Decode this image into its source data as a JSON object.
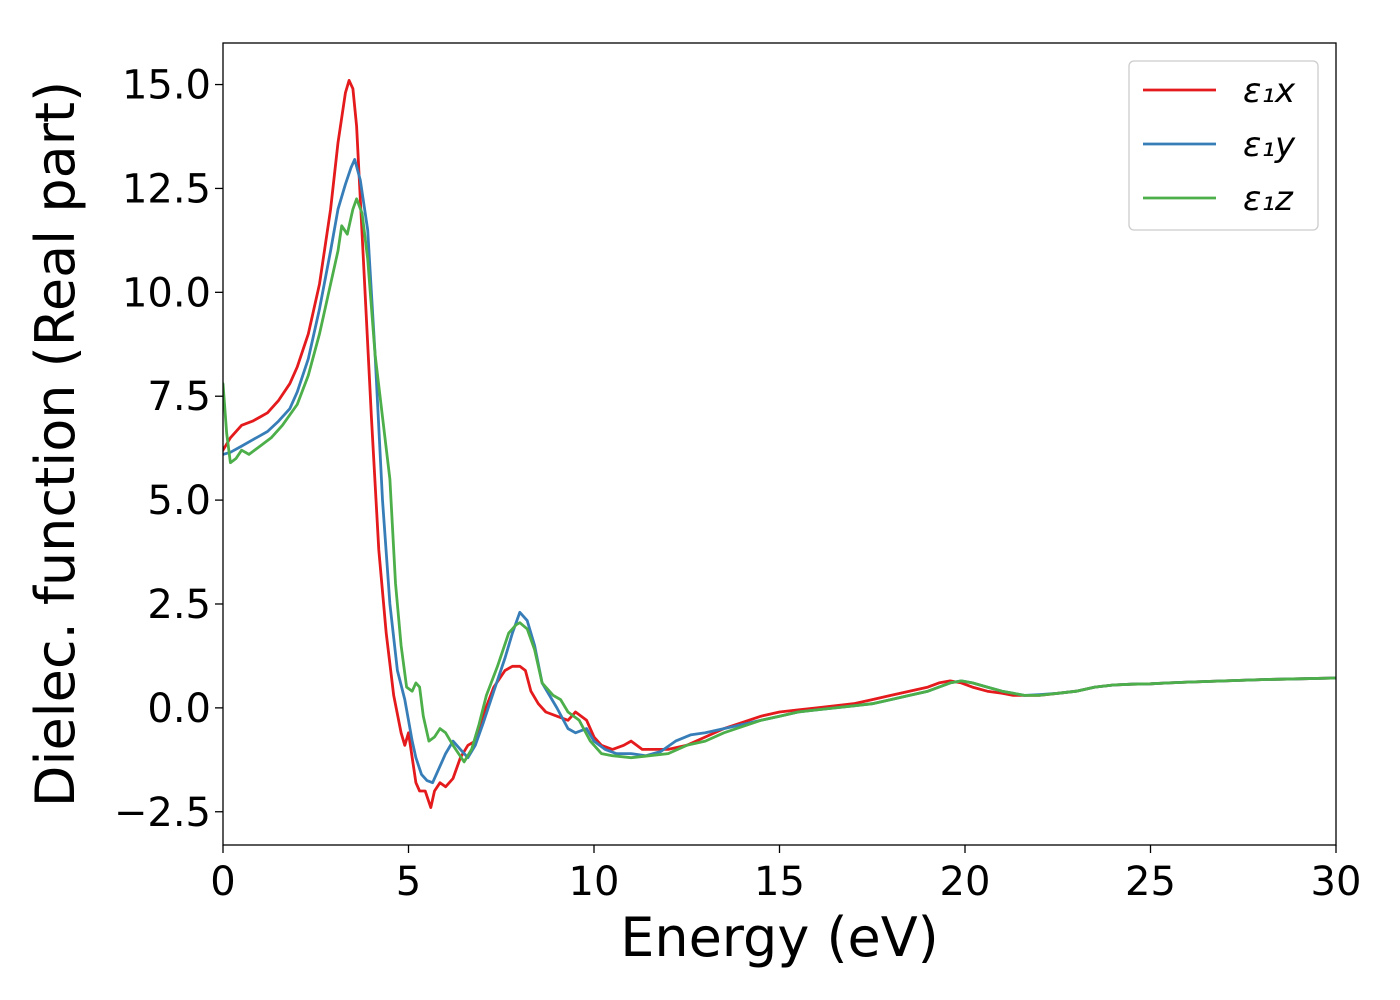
{
  "chart_data": {
    "type": "line",
    "title": "",
    "xlabel": "Energy (eV)",
    "ylabel": "Dielec. function (Real part)",
    "xlim": [
      0,
      30
    ],
    "ylim": [
      -3.3,
      16.0
    ],
    "xticks": [
      0,
      5,
      10,
      15,
      20,
      25,
      30
    ],
    "xtick_labels": [
      "0",
      "5",
      "10",
      "15",
      "20",
      "25",
      "30"
    ],
    "yticks": [
      -2.5,
      0.0,
      2.5,
      5.0,
      7.5,
      10.0,
      12.5,
      15.0
    ],
    "ytick_labels": [
      "−2.5",
      "0.0",
      "2.5",
      "5.0",
      "7.5",
      "10.0",
      "12.5",
      "15.0"
    ],
    "grid": false,
    "legend": {
      "position": "top-right"
    },
    "series": [
      {
        "name": "ε₁x",
        "color": "#e41a1c",
        "x": [
          0,
          0.2,
          0.5,
          0.8,
          1.0,
          1.2,
          1.5,
          1.8,
          2.0,
          2.3,
          2.6,
          2.9,
          3.1,
          3.3,
          3.4,
          3.5,
          3.6,
          3.8,
          4.0,
          4.2,
          4.4,
          4.6,
          4.8,
          4.9,
          5.0,
          5.1,
          5.2,
          5.3,
          5.45,
          5.6,
          5.7,
          5.85,
          6.0,
          6.2,
          6.4,
          6.6,
          6.8,
          7.0,
          7.3,
          7.6,
          7.8,
          8.0,
          8.15,
          8.3,
          8.5,
          8.7,
          9.0,
          9.3,
          9.5,
          9.8,
          10.0,
          10.2,
          10.5,
          10.8,
          11.0,
          11.3,
          11.6,
          12.0,
          12.5,
          13.0,
          13.5,
          14.0,
          14.5,
          15.0,
          15.5,
          16.0,
          16.5,
          17.0,
          17.5,
          18.0,
          18.5,
          19.0,
          19.3,
          19.6,
          19.9,
          20.2,
          20.6,
          21.0,
          21.3,
          21.6,
          22.0,
          22.5,
          23.0,
          23.5,
          24.0,
          24.5,
          25.0,
          25.5,
          26.0,
          27.0,
          28.0,
          29.0,
          30.0
        ],
        "y": [
          6.2,
          6.5,
          6.8,
          6.9,
          7.0,
          7.1,
          7.4,
          7.8,
          8.2,
          9.0,
          10.2,
          12.0,
          13.6,
          14.8,
          15.1,
          14.9,
          14.0,
          10.5,
          7.0,
          3.8,
          1.8,
          0.3,
          -0.6,
          -0.9,
          -0.6,
          -1.2,
          -1.8,
          -2.0,
          -2.0,
          -2.4,
          -2.0,
          -1.8,
          -1.9,
          -1.7,
          -1.2,
          -0.9,
          -0.8,
          -0.2,
          0.5,
          0.9,
          1.0,
          1.0,
          0.9,
          0.4,
          0.1,
          -0.1,
          -0.2,
          -0.3,
          -0.1,
          -0.3,
          -0.7,
          -0.9,
          -1.0,
          -0.9,
          -0.8,
          -1.0,
          -1.0,
          -1.0,
          -0.9,
          -0.7,
          -0.5,
          -0.35,
          -0.2,
          -0.1,
          -0.05,
          0.0,
          0.05,
          0.1,
          0.2,
          0.3,
          0.4,
          0.5,
          0.6,
          0.65,
          0.6,
          0.5,
          0.4,
          0.35,
          0.3,
          0.3,
          0.3,
          0.35,
          0.4,
          0.5,
          0.55,
          0.57,
          0.58,
          0.6,
          0.62,
          0.65,
          0.68,
          0.7,
          0.72
        ]
      },
      {
        "name": "ε₁y",
        "color": "#377eb8",
        "x": [
          0,
          0.2,
          0.5,
          0.8,
          1.0,
          1.2,
          1.5,
          1.8,
          2.0,
          2.3,
          2.6,
          2.9,
          3.1,
          3.3,
          3.45,
          3.55,
          3.7,
          3.9,
          4.1,
          4.3,
          4.5,
          4.7,
          4.9,
          5.0,
          5.1,
          5.2,
          5.35,
          5.5,
          5.65,
          5.8,
          6.0,
          6.2,
          6.4,
          6.6,
          6.8,
          7.0,
          7.3,
          7.6,
          7.8,
          8.0,
          8.2,
          8.4,
          8.6,
          8.8,
          9.0,
          9.3,
          9.5,
          9.8,
          10.0,
          10.3,
          10.6,
          11.0,
          11.4,
          11.8,
          12.2,
          12.6,
          13.0,
          13.5,
          14.0,
          14.5,
          15.0,
          15.5,
          16.0,
          16.5,
          17.0,
          17.5,
          18.0,
          18.5,
          19.0,
          19.3,
          19.6,
          19.9,
          20.2,
          20.6,
          21.0,
          21.3,
          21.6,
          22.0,
          22.5,
          23.0,
          23.5,
          24.0,
          24.5,
          25.0,
          25.5,
          26.0,
          27.0,
          28.0,
          29.0,
          30.0
        ],
        "y": [
          6.1,
          6.15,
          6.3,
          6.45,
          6.55,
          6.65,
          6.9,
          7.2,
          7.6,
          8.4,
          9.6,
          11.0,
          12.0,
          12.6,
          13.0,
          13.2,
          12.7,
          11.5,
          8.5,
          5.0,
          2.5,
          0.9,
          0.2,
          -0.3,
          -0.8,
          -1.2,
          -1.6,
          -1.75,
          -1.8,
          -1.5,
          -1.1,
          -0.8,
          -1.0,
          -1.2,
          -0.9,
          -0.4,
          0.4,
          1.2,
          1.8,
          2.3,
          2.1,
          1.5,
          0.6,
          0.3,
          0.0,
          -0.5,
          -0.6,
          -0.5,
          -0.8,
          -1.0,
          -1.1,
          -1.1,
          -1.15,
          -1.05,
          -0.8,
          -0.65,
          -0.6,
          -0.5,
          -0.4,
          -0.3,
          -0.2,
          -0.1,
          -0.05,
          0.0,
          0.05,
          0.1,
          0.2,
          0.3,
          0.4,
          0.5,
          0.6,
          0.65,
          0.6,
          0.5,
          0.4,
          0.35,
          0.3,
          0.32,
          0.35,
          0.4,
          0.5,
          0.55,
          0.57,
          0.58,
          0.6,
          0.62,
          0.65,
          0.68,
          0.7,
          0.72
        ]
      },
      {
        "name": "ε₁z",
        "color": "#4daf4a",
        "x": [
          0,
          0.1,
          0.2,
          0.35,
          0.5,
          0.7,
          1.0,
          1.3,
          1.6,
          2.0,
          2.3,
          2.6,
          2.9,
          3.1,
          3.2,
          3.35,
          3.5,
          3.6,
          3.75,
          3.9,
          4.1,
          4.3,
          4.5,
          4.65,
          4.8,
          4.95,
          5.1,
          5.2,
          5.3,
          5.4,
          5.55,
          5.7,
          5.85,
          6.0,
          6.2,
          6.35,
          6.5,
          6.7,
          6.9,
          7.1,
          7.4,
          7.7,
          7.9,
          8.0,
          8.2,
          8.4,
          8.6,
          8.9,
          9.1,
          9.3,
          9.6,
          9.9,
          10.2,
          10.5,
          11.0,
          11.5,
          12.0,
          12.5,
          13.0,
          13.5,
          14.0,
          14.5,
          15.0,
          15.5,
          16.0,
          16.5,
          17.0,
          17.5,
          18.0,
          18.5,
          19.0,
          19.3,
          19.6,
          19.9,
          20.2,
          20.6,
          21.0,
          21.3,
          21.6,
          22.0,
          22.5,
          23.0,
          23.5,
          24.0,
          24.5,
          25.0,
          25.5,
          26.0,
          27.0,
          28.0,
          29.0,
          30.0
        ],
        "y": [
          7.8,
          6.6,
          5.9,
          6.0,
          6.2,
          6.1,
          6.3,
          6.5,
          6.8,
          7.3,
          8.0,
          9.0,
          10.2,
          11.0,
          11.6,
          11.4,
          12.0,
          12.25,
          11.9,
          10.8,
          8.5,
          7.0,
          5.5,
          3.0,
          1.5,
          0.5,
          0.4,
          0.6,
          0.5,
          -0.2,
          -0.8,
          -0.7,
          -0.5,
          -0.6,
          -0.9,
          -1.1,
          -1.3,
          -1.0,
          -0.4,
          0.3,
          1.0,
          1.8,
          2.0,
          2.05,
          1.9,
          1.4,
          0.6,
          0.3,
          0.2,
          -0.1,
          -0.3,
          -0.8,
          -1.1,
          -1.15,
          -1.2,
          -1.15,
          -1.1,
          -0.9,
          -0.8,
          -0.6,
          -0.45,
          -0.3,
          -0.2,
          -0.1,
          -0.05,
          0.0,
          0.05,
          0.1,
          0.2,
          0.3,
          0.4,
          0.5,
          0.6,
          0.65,
          0.6,
          0.5,
          0.4,
          0.35,
          0.3,
          0.3,
          0.35,
          0.4,
          0.5,
          0.55,
          0.57,
          0.58,
          0.6,
          0.62,
          0.65,
          0.68,
          0.7,
          0.72
        ]
      }
    ]
  }
}
